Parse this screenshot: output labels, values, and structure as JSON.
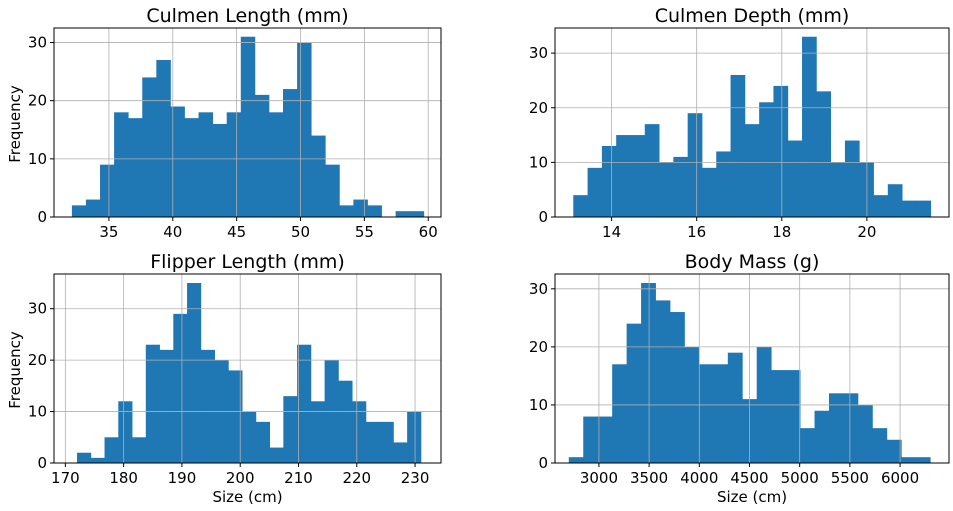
{
  "colors": {
    "bar": "#1f77b4",
    "grid": "#b0b0b0",
    "background": "#ffffff"
  },
  "chart_data": [
    {
      "type": "bar",
      "title": "Culmen Length (mm)",
      "xlabel": "",
      "ylabel": "Frequency",
      "grid": true,
      "xlim": [
        30.7,
        61.0
      ],
      "ylim": [
        0,
        32.5
      ],
      "xticks": [
        35,
        40,
        45,
        50,
        55,
        60
      ],
      "yticks": [
        0,
        10,
        20,
        30
      ],
      "bin_start": 32.1,
      "bin_width": 1.102,
      "values": [
        2,
        3,
        9,
        18,
        17,
        24,
        27,
        19,
        17,
        18,
        16,
        18,
        31,
        21,
        18,
        22,
        30,
        14,
        9,
        2,
        3,
        2,
        0,
        1,
        1
      ]
    },
    {
      "type": "bar",
      "title": "Culmen Depth (mm)",
      "xlabel": "",
      "ylabel": "",
      "grid": true,
      "xlim": [
        12.67,
        21.93
      ],
      "ylim": [
        0,
        34.6
      ],
      "xticks": [
        14,
        16,
        18,
        20
      ],
      "yticks": [
        0,
        10,
        20,
        30
      ],
      "bin_start": 13.1,
      "bin_width": 0.336,
      "values": [
        4,
        9,
        13,
        15,
        15,
        17,
        10,
        11,
        19,
        9,
        12,
        26,
        17,
        21,
        24,
        14,
        33,
        23,
        10,
        14,
        10,
        4,
        6,
        3,
        3
      ]
    },
    {
      "type": "bar",
      "title": "Flipper Length (mm)",
      "xlabel": "Size (cm)",
      "ylabel": "Frequency",
      "grid": true,
      "xlim": [
        168.05,
        234.45
      ],
      "ylim": [
        0,
        36.75
      ],
      "xticks": [
        170,
        180,
        190,
        200,
        210,
        220,
        230
      ],
      "yticks": [
        0,
        10,
        20,
        30
      ],
      "bin_start": 172,
      "bin_width": 2.36,
      "values": [
        2,
        1,
        5,
        12,
        5,
        23,
        22,
        29,
        35,
        22,
        20,
        18,
        10,
        8,
        3,
        13,
        23,
        12,
        20,
        16,
        12,
        8,
        8,
        4,
        10
      ]
    },
    {
      "type": "bar",
      "title": "Body Mass (g)",
      "xlabel": "Size (cm)",
      "ylabel": "",
      "grid": true,
      "xlim": [
        2562.5,
        6487.5
      ],
      "ylim": [
        0,
        32.55
      ],
      "xticks": [
        3000,
        3500,
        4000,
        4500,
        5000,
        5500,
        6000
      ],
      "yticks": [
        0,
        10,
        20,
        30
      ],
      "bin_start": 2700,
      "bin_width": 144,
      "values": [
        1,
        8,
        8,
        17,
        24,
        31,
        28,
        26,
        20,
        17,
        17,
        19,
        11,
        20,
        16,
        16,
        6,
        9,
        12,
        12,
        10,
        6,
        4,
        1,
        1
      ]
    }
  ]
}
